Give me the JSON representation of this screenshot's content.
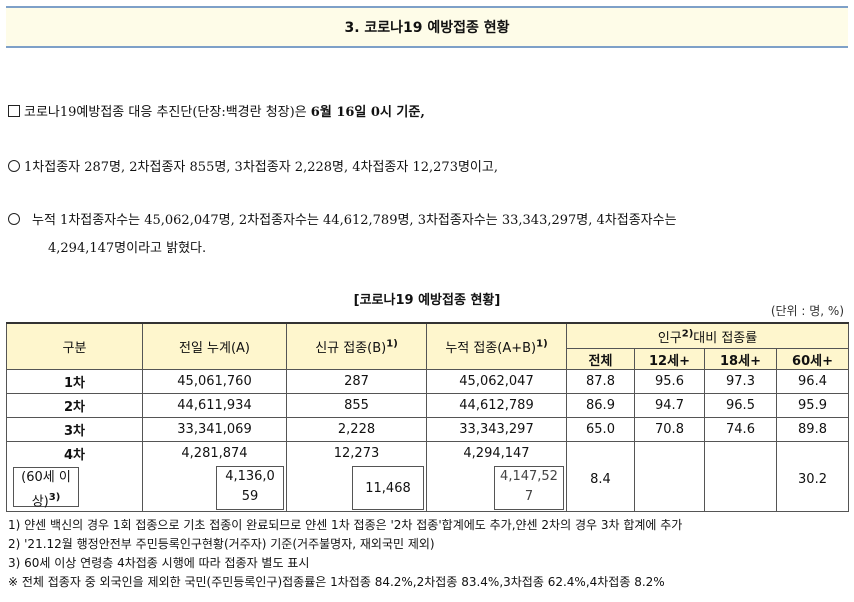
{
  "header": {
    "title": "3. 코로나19 예방접종 현황"
  },
  "body": {
    "p1": "코로나19예방접종 대응 추진단(단장:백경란 청장)은 ",
    "p1_bold": "6월 16일 0시 기준,",
    "p2": "1차접종자 287명, 2차접종자 855명, 3차접종자 2,228명, 4차접종자 12,273명이고,",
    "p3a": "누적 1차접종자수는 45,062,047명, 2차접종자수는 44,612,789명, 3차접종자수는 33,343,297명, 4차접종자수는",
    "p3b": "4,294,147명이라고 밝혔다."
  },
  "table": {
    "title": "[코로나19 예방접종 현황]",
    "unit": "(단위 : 명, %)",
    "headers": {
      "col_type": "구분",
      "col_prev": "전일 누계(A)",
      "col_new": "신규 접종(B)",
      "col_new_sup": "1)",
      "col_cum": "누적 접종(A+B)",
      "col_cum_sup": "1)",
      "col_rate": "인구",
      "col_rate_sup": "2)",
      "col_rate_tail": "대비 접종률",
      "sub_all": "전체",
      "sub_12": "12세+",
      "sub_18": "18세+",
      "sub_60": "60세+"
    },
    "rows": [
      {
        "label": "1차",
        "prev": "45,061,760",
        "new": "287",
        "cum": "45,062,047",
        "all": "87.8",
        "r12": "95.6",
        "r18": "97.3",
        "r60": "96.4"
      },
      {
        "label": "2차",
        "prev": "44,611,934",
        "new": "855",
        "cum": "44,612,789",
        "all": "86.9",
        "r12": "94.7",
        "r18": "96.5",
        "r60": "95.9"
      },
      {
        "label": "3차",
        "prev": "33,341,069",
        "new": "2,228",
        "cum": "33,343,297",
        "all": "65.0",
        "r12": "70.8",
        "r18": "74.6",
        "r60": "89.8"
      },
      {
        "label": "4차",
        "prev": "4,281,874",
        "new": "12,273",
        "cum": "4,294,147"
      }
    ],
    "sub_row": {
      "label_l1": "(60세 이",
      "label_l2": "상)",
      "label_sup": "3)",
      "prev_l1": "4,136,0",
      "prev_l2": "59",
      "new": "11,468",
      "cum_l1": "4,147,52",
      "cum_l2": "7",
      "all": "8.4",
      "r60": "30.2"
    }
  },
  "notes": [
    "1) 얀센 백신의 경우 1회 접종으로 기초 접종이 완료되므로 얀센 1차 접종은 '2차 접종'합계에도 추가,얀센 2차의 경우 3차 합계에 추가",
    "2) '21.12월 행정안전부 주민등록인구현황(거주자) 기준(거주불명자, 재외국민 제외)",
    "3) 60세 이상 연령층 4차접종 시행에 따라 접종자 별도 표시",
    "※ 전체 접종자 중 외국인을 제외한 국민(주민등록인구)접종률은 1차접종 84.2%,2차접종 83.4%,3차접종 62.4%,4차접종 8.2%"
  ]
}
